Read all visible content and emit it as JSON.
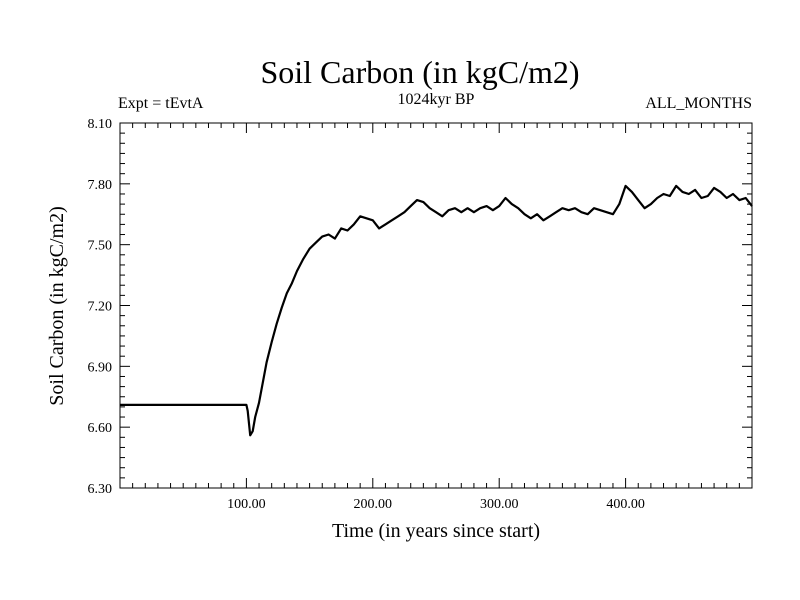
{
  "chart_data": {
    "type": "line",
    "title": "Soil Carbon (in kgC/m2)",
    "subtitle_left": "Expt = tEvtA",
    "subtitle_center": "1024kyr BP",
    "subtitle_right": "ALL_MONTHS",
    "xlabel": "Time (in years since start)",
    "ylabel": "Soil Carbon (in kgC/m2)",
    "xlim": [
      0,
      500
    ],
    "ylim": [
      6.3,
      8.1
    ],
    "x_ticks": [
      100,
      200,
      300,
      400
    ],
    "x_tick_labels": [
      "100.00",
      "200.00",
      "300.00",
      "400.00"
    ],
    "y_ticks": [
      6.3,
      6.6,
      6.9,
      7.2,
      7.5,
      7.8,
      8.1
    ],
    "y_tick_labels": [
      "6.30",
      "6.60",
      "6.90",
      "7.20",
      "7.50",
      "7.80",
      "8.10"
    ],
    "grid": false,
    "series": [
      {
        "name": "Soil Carbon",
        "x": [
          0,
          100,
          101,
          103,
          105,
          107,
          110,
          113,
          116,
          120,
          124,
          128,
          132,
          136,
          140,
          145,
          150,
          155,
          160,
          165,
          170,
          175,
          180,
          185,
          190,
          195,
          200,
          205,
          210,
          215,
          220,
          225,
          230,
          235,
          240,
          245,
          250,
          255,
          260,
          265,
          270,
          275,
          280,
          285,
          290,
          295,
          300,
          305,
          310,
          315,
          320,
          325,
          330,
          335,
          340,
          345,
          350,
          355,
          360,
          365,
          370,
          375,
          380,
          385,
          390,
          395,
          400,
          405,
          410,
          415,
          420,
          425,
          430,
          435,
          440,
          445,
          450,
          455,
          460,
          465,
          470,
          475,
          480,
          485,
          490,
          495,
          500
        ],
        "values": [
          6.71,
          6.71,
          6.68,
          6.56,
          6.58,
          6.65,
          6.72,
          6.82,
          6.92,
          7.02,
          7.11,
          7.19,
          7.26,
          7.31,
          7.37,
          7.43,
          7.48,
          7.51,
          7.54,
          7.55,
          7.53,
          7.58,
          7.57,
          7.6,
          7.64,
          7.63,
          7.62,
          7.58,
          7.6,
          7.62,
          7.64,
          7.66,
          7.69,
          7.72,
          7.71,
          7.68,
          7.66,
          7.64,
          7.67,
          7.68,
          7.66,
          7.68,
          7.66,
          7.68,
          7.69,
          7.67,
          7.69,
          7.73,
          7.7,
          7.68,
          7.65,
          7.63,
          7.65,
          7.62,
          7.64,
          7.66,
          7.68,
          7.67,
          7.68,
          7.66,
          7.65,
          7.68,
          7.67,
          7.66,
          7.65,
          7.7,
          7.79,
          7.76,
          7.72,
          7.68,
          7.7,
          7.73,
          7.75,
          7.74,
          7.79,
          7.76,
          7.75,
          7.77,
          7.73,
          7.74,
          7.78,
          7.76,
          7.73,
          7.75,
          7.72,
          7.73,
          7.69
        ]
      }
    ]
  }
}
